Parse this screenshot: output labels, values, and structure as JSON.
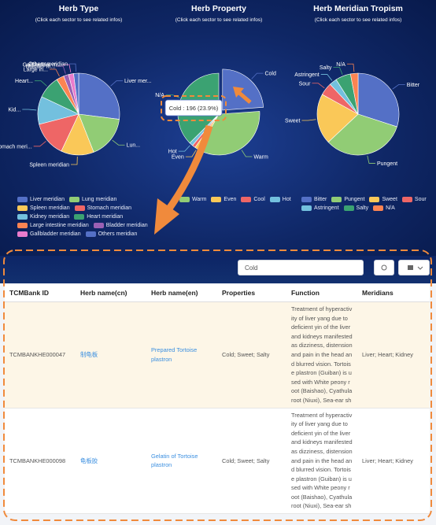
{
  "chart_data": [
    {
      "type": "pie",
      "title": "Herb Type",
      "subtitle": "(Click each sector to see related infos)",
      "categories": [
        "Liver meridian",
        "Lung meridian",
        "Spleen meridian",
        "Stomach meridian",
        "Kidney meridian",
        "Heart meridian",
        "Large intestine meridian",
        "Bladder meridian",
        "Gallbladder meridian",
        "Others meridian"
      ],
      "values": [
        27,
        17,
        13,
        14,
        11,
        9,
        3,
        2,
        2,
        2
      ],
      "slice_labels": [
        "Liver mer...",
        "Lun...",
        "Spleen meridian",
        "Stomach meri...",
        "Kid...",
        "Heart...",
        "Large in...",
        "Bladder m...",
        "Gallbladder m...",
        "Others meridian"
      ],
      "colors": [
        "#5470c6",
        "#91cc75",
        "#fac858",
        "#ee6666",
        "#73c0de",
        "#3ba272",
        "#fc8452",
        "#9a60b4",
        "#ea7ccc",
        "#5470c6"
      ],
      "legend": [
        "Liver meridian",
        "Lung meridian",
        "Spleen meridian",
        "Stomach meridian",
        "Kidney meridian",
        "Heart meridian",
        "Large intestine meridian",
        "Bladder meridian",
        "Gallbladder meridian",
        "Others meridian"
      ]
    },
    {
      "type": "pie",
      "title": "Herb Property",
      "subtitle": "(Click each sector to see related infos)",
      "categories": [
        "Cold",
        "Warm",
        "Even",
        "Cool",
        "Hot",
        "N/A"
      ],
      "values": [
        196,
        280,
        15,
        10,
        12,
        307
      ],
      "slice_labels": [
        "Cold",
        "Warm",
        "Even",
        null,
        "Hot",
        "N/A"
      ],
      "colors": [
        "#5470c6",
        "#91cc75",
        "#fac858",
        "#ee6666",
        "#73c0de",
        "#3ba272"
      ],
      "legend": [
        "Warm",
        "Even",
        "Cool",
        "Hot"
      ],
      "highlight": "Cold",
      "tooltip": "Cold : 196 (23.9%)"
    },
    {
      "type": "pie",
      "title": "Herb Meridian Tropism",
      "subtitle": "(Click each sector to see related infos)",
      "categories": [
        "Bitter",
        "Pungent",
        "Sweet",
        "Sour",
        "Astringent",
        "Salty",
        "N/A"
      ],
      "values": [
        30,
        33,
        20,
        5,
        3,
        6,
        3
      ],
      "slice_labels": [
        "Bitter",
        "Pungent",
        "Sweet",
        "Sour",
        "Astringent",
        "Salty",
        "N/A"
      ],
      "colors": [
        "#5470c6",
        "#91cc75",
        "#fac858",
        "#ee6666",
        "#73c0de",
        "#3ba272",
        "#fc8452"
      ],
      "legend": [
        "Bitter",
        "Pungent",
        "Sweet",
        "Sour",
        "Astringent",
        "Salty",
        "N/A"
      ]
    }
  ],
  "search": {
    "value": "Cold"
  },
  "table": {
    "headers": [
      "TCMBank ID",
      "Herb name(cn)",
      "Herb name(en)",
      "Properties",
      "Function",
      "Meridians"
    ],
    "rows": [
      [
        "TCMBANKHE000047",
        "制龟板",
        "Prepared Tortoise plastron",
        "Cold; Sweet; Salty",
        "Treatment of hyperactivity of liver yang due to deficient yin of the liver and kidneys manifested as dizziness, distension and pain in the head and blurred vision. Tortoise plastron (Guiban) is used with White peony root (Baishao), Cyathula root (Niuxi), Sea-ear sh",
        "Liver; Heart; Kidney"
      ],
      [
        "TCMBANKHE000098",
        "龟板胶",
        "Gelatin of Tortoise plastron",
        "Cold; Sweet; Salty",
        "Treatment of hyperactivity of liver yang due to deficient yin of the liver and kidneys manifested as dizziness, distension and pain in the head and blurred vision. Tortoise plastron (Guiban) is used with White peony root (Baishao), Cyathula root (Niuxi), Sea-ear sh",
        "Liver; Heart; Kidney"
      ]
    ]
  }
}
